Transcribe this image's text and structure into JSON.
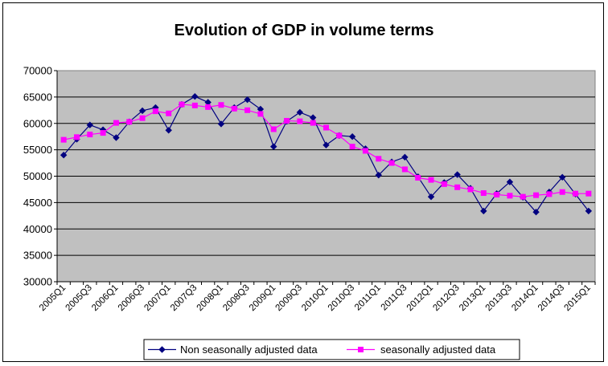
{
  "chart_data": {
    "type": "line",
    "title": "Evolution of GDP in volume terms",
    "xlabel": "",
    "ylabel": "",
    "ylim": [
      30000,
      70000
    ],
    "ytick_step": 5000,
    "grid": "horizontal",
    "legend_position": "bottom",
    "plot_background": "#C0C0C0",
    "x": [
      "2005Q1",
      "2005Q2",
      "2005Q3",
      "2005Q4",
      "2006Q1",
      "2006Q2",
      "2006Q3",
      "2006Q4",
      "2007Q1",
      "2007Q2",
      "2007Q3",
      "2007Q4",
      "2008Q1",
      "2008Q2",
      "2008Q3",
      "2008Q4",
      "2009Q1",
      "2009Q2",
      "2009Q3",
      "2009Q4",
      "2010Q1",
      "2010Q2",
      "2010Q3",
      "2010Q4",
      "2011Q1",
      "2011Q2",
      "2011Q3",
      "2011Q4",
      "2012Q1",
      "2012Q2",
      "2012Q3",
      "2012Q4",
      "2013Q1",
      "2013Q2",
      "2013Q3",
      "2013Q4",
      "2014Q1",
      "2014Q2",
      "2014Q3",
      "2014Q4",
      "2015Q1"
    ],
    "xtick_labels": [
      "2005Q1",
      "2005Q3",
      "2006Q1",
      "2006Q3",
      "2007Q1",
      "2007Q3",
      "2008Q1",
      "2008Q3",
      "2009Q1",
      "2009Q3",
      "2010Q1",
      "2010Q3",
      "2011Q1",
      "2011Q3",
      "2012Q1",
      "2012Q3",
      "2013Q1",
      "2013Q3",
      "2014Q1",
      "2014Q3",
      "2015Q1"
    ],
    "series": [
      {
        "name": "Non seasonally adjusted data",
        "color": "#000080",
        "marker": "diamond",
        "values": [
          54000,
          57000,
          59700,
          58800,
          57300,
          60300,
          62400,
          63000,
          58700,
          63600,
          65100,
          64000,
          59900,
          63000,
          64500,
          62700,
          55600,
          60400,
          62100,
          61100,
          55900,
          57700,
          57500,
          55200,
          50200,
          52700,
          53600,
          49900,
          46100,
          48800,
          50300,
          47700,
          43400,
          46700,
          48900,
          46000,
          43200,
          47000,
          49800,
          46600,
          43400
        ]
      },
      {
        "name": "seasonally adjusted data",
        "color": "#FF00FF",
        "marker": "square",
        "values": [
          56900,
          57400,
          57900,
          58200,
          60100,
          60300,
          61000,
          62300,
          61900,
          63600,
          63400,
          63100,
          63500,
          62800,
          62500,
          61800,
          58900,
          60500,
          60400,
          60100,
          59200,
          57700,
          55600,
          54800,
          53300,
          52500,
          51300,
          49700,
          49300,
          48500,
          47900,
          47500,
          46800,
          46500,
          46300,
          46100,
          46400,
          46600,
          47000,
          46700,
          46700
        ]
      }
    ]
  }
}
